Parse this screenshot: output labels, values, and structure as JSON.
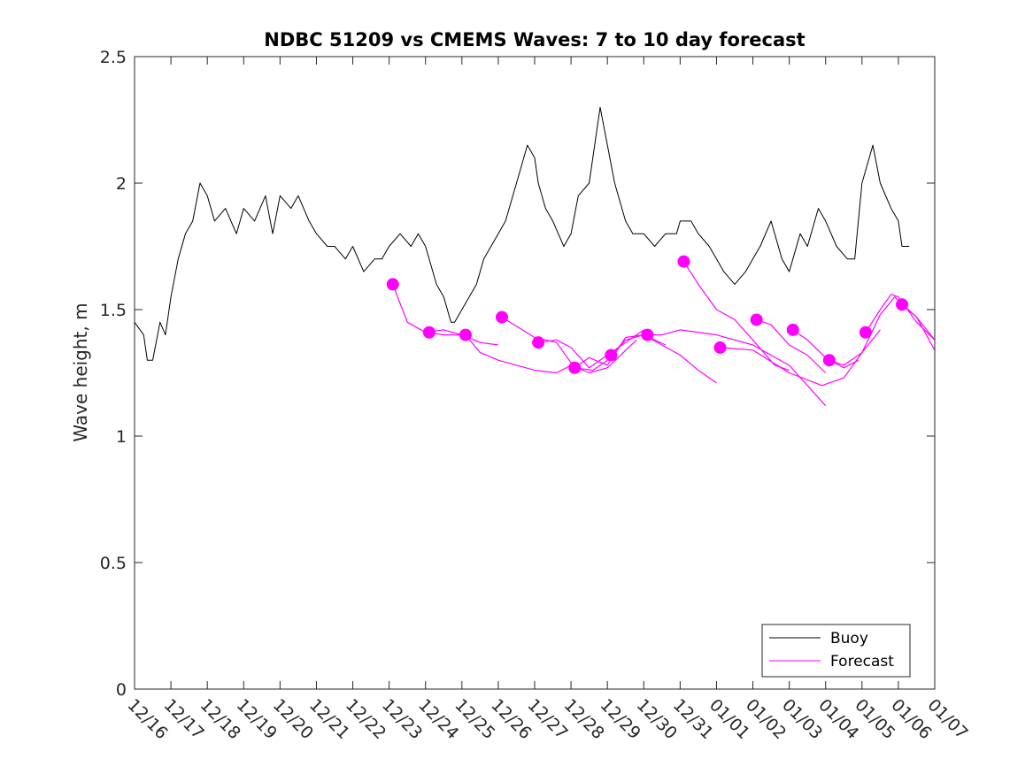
{
  "chart_data": {
    "type": "line",
    "title": "NDBC 51209 vs CMEMS Waves: 7 to 10 day forecast",
    "xlabel": "",
    "ylabel": "Wave height, m",
    "xlim": [
      0,
      22
    ],
    "ylim": [
      0,
      2.5
    ],
    "x_tick_labels": [
      "12/16",
      "12/17",
      "12/18",
      "12/19",
      "12/20",
      "12/21",
      "12/22",
      "12/23",
      "12/24",
      "12/25",
      "12/26",
      "12/27",
      "12/28",
      "12/29",
      "12/30",
      "12/31",
      "01/01",
      "01/02",
      "01/03",
      "01/04",
      "01/05",
      "01/06",
      "01/07"
    ],
    "y_ticks": [
      0,
      0.5,
      1,
      1.5,
      2,
      2.5
    ],
    "y_tick_labels": [
      "0",
      "0.5",
      "1",
      "1.5",
      "2",
      "2.5"
    ],
    "x_units": "days since 12/16",
    "legend": {
      "position": "bottom-right",
      "entries": [
        {
          "label": "Buoy",
          "color": "#000000"
        },
        {
          "label": "Forecast",
          "color": "#ff00ff"
        }
      ]
    },
    "series": [
      {
        "name": "Buoy",
        "color": "#000000",
        "x": [
          0.0,
          0.25,
          0.35,
          0.5,
          0.7,
          0.85,
          1.0,
          1.2,
          1.4,
          1.6,
          1.8,
          2.0,
          2.2,
          2.5,
          2.8,
          3.0,
          3.3,
          3.6,
          3.8,
          4.0,
          4.3,
          4.5,
          4.8,
          5.0,
          5.3,
          5.5,
          5.8,
          6.0,
          6.3,
          6.6,
          6.8,
          7.0,
          7.3,
          7.6,
          7.8,
          8.0,
          8.3,
          8.5,
          8.7,
          8.8,
          9.0,
          9.2,
          9.4,
          9.6,
          9.8,
          10.0,
          10.2,
          10.5,
          10.8,
          11.0,
          11.1,
          11.3,
          11.5,
          11.8,
          12.0,
          12.2,
          12.5,
          12.8,
          13.0,
          13.2,
          13.4,
          13.5,
          13.7,
          13.8,
          14.0,
          14.3,
          14.6,
          14.9,
          15.0,
          15.3,
          15.5,
          15.8,
          16.0,
          16.2,
          16.5,
          16.8,
          17.0,
          17.2,
          17.5,
          17.8,
          18.0,
          18.3,
          18.5,
          18.8,
          19.0,
          19.3,
          19.6,
          19.8,
          20.0,
          20.3,
          20.5,
          20.8,
          21.0,
          21.1,
          21.3
        ],
        "y": [
          1.45,
          1.4,
          1.3,
          1.3,
          1.45,
          1.4,
          1.55,
          1.7,
          1.8,
          1.85,
          2.0,
          1.95,
          1.85,
          1.9,
          1.8,
          1.9,
          1.85,
          1.95,
          1.8,
          1.95,
          1.9,
          1.95,
          1.85,
          1.8,
          1.75,
          1.75,
          1.7,
          1.75,
          1.65,
          1.7,
          1.7,
          1.75,
          1.8,
          1.75,
          1.8,
          1.75,
          1.6,
          1.55,
          1.45,
          1.45,
          1.5,
          1.55,
          1.6,
          1.7,
          1.75,
          1.8,
          1.85,
          2.0,
          2.15,
          2.1,
          2.0,
          1.9,
          1.85,
          1.75,
          1.8,
          1.95,
          2.0,
          2.3,
          2.15,
          2.0,
          1.9,
          1.85,
          1.8,
          1.8,
          1.8,
          1.75,
          1.8,
          1.8,
          1.85,
          1.85,
          1.8,
          1.75,
          1.7,
          1.65,
          1.6,
          1.65,
          1.7,
          1.75,
          1.85,
          1.7,
          1.65,
          1.8,
          1.75,
          1.9,
          1.85,
          1.75,
          1.7,
          1.7,
          2.0,
          2.15,
          2.0,
          1.9,
          1.85,
          1.75,
          1.75
        ]
      },
      {
        "name": "Forecast",
        "color": "#ff00ff",
        "marker_color": "#ff00ff",
        "runs": [
          {
            "x": [
              7.1,
              7.5,
              8.0,
              8.5,
              9.0
            ],
            "y": [
              1.6,
              1.45,
              1.41,
              1.42,
              1.4
            ]
          },
          {
            "x": [
              8.1,
              8.5,
              9.0,
              9.5,
              10.0
            ],
            "y": [
              1.41,
              1.4,
              1.4,
              1.37,
              1.36
            ]
          },
          {
            "x": [
              9.1,
              9.5,
              10.0,
              11.0,
              11.6,
              12.0,
              12.5,
              13.0,
              13.8
            ],
            "y": [
              1.4,
              1.33,
              1.3,
              1.26,
              1.25,
              1.28,
              1.25,
              1.27,
              1.38
            ]
          },
          {
            "x": [
              10.1,
              11.0,
              11.6,
              12.1,
              12.6,
              13.0
            ],
            "y": [
              1.47,
              1.39,
              1.37,
              1.27,
              1.26,
              1.3
            ]
          },
          {
            "x": [
              11.1,
              11.6,
              12.0,
              12.5,
              13.0,
              14.0
            ],
            "y": [
              1.37,
              1.38,
              1.35,
              1.27,
              1.32,
              1.42
            ]
          },
          {
            "x": [
              12.1,
              12.5,
              13.0,
              13.5,
              14.0,
              14.6
            ],
            "y": [
              1.27,
              1.31,
              1.28,
              1.39,
              1.4,
              1.36
            ]
          },
          {
            "x": [
              13.1,
              13.5,
              14.0,
              15.0,
              15.5,
              16.0
            ],
            "y": [
              1.32,
              1.38,
              1.4,
              1.32,
              1.26,
              1.21
            ]
          },
          {
            "x": [
              14.1,
              14.5,
              15.0,
              16.0,
              17.0,
              18.0,
              19.0
            ],
            "y": [
              1.4,
              1.4,
              1.42,
              1.4,
              1.36,
              1.28,
              1.12
            ]
          },
          {
            "x": [
              15.1,
              15.5,
              16.0,
              16.5,
              17.0,
              17.6,
              18.0
            ],
            "y": [
              1.69,
              1.6,
              1.5,
              1.46,
              1.38,
              1.28,
              1.26
            ]
          },
          {
            "x": [
              16.1,
              17.0,
              18.0,
              18.9,
              19.5,
              20.0,
              20.5
            ],
            "y": [
              1.35,
              1.34,
              1.25,
              1.2,
              1.23,
              1.33,
              1.42
            ]
          },
          {
            "x": [
              17.1,
              17.5,
              18.0,
              18.5,
              19.0
            ],
            "y": [
              1.46,
              1.44,
              1.36,
              1.32,
              1.25
            ]
          },
          {
            "x": [
              18.1,
              18.5,
              19.0,
              19.5,
              19.9
            ],
            "y": [
              1.42,
              1.38,
              1.31,
              1.27,
              1.3
            ]
          },
          {
            "x": [
              19.1,
              19.5,
              20.0,
              20.5,
              20.9,
              21.5,
              22.0
            ],
            "y": [
              1.3,
              1.28,
              1.33,
              1.48,
              1.55,
              1.47,
              1.34
            ]
          },
          {
            "x": [
              20.1,
              20.5,
              20.8,
              21.0,
              21.5,
              22.0
            ],
            "y": [
              1.41,
              1.5,
              1.56,
              1.55,
              1.45,
              1.38
            ]
          },
          {
            "x": [
              21.1,
              21.5,
              22.0
            ],
            "y": [
              1.52,
              1.47,
              1.38
            ]
          }
        ],
        "markers": {
          "x": [
            7.1,
            8.1,
            9.1,
            10.1,
            11.1,
            12.1,
            13.1,
            14.1,
            15.1,
            16.1,
            17.1,
            18.1,
            19.1,
            20.1,
            21.1
          ],
          "y": [
            1.6,
            1.41,
            1.4,
            1.47,
            1.37,
            1.27,
            1.32,
            1.4,
            1.69,
            1.35,
            1.46,
            1.42,
            1.3,
            1.41,
            1.52
          ]
        }
      }
    ]
  }
}
